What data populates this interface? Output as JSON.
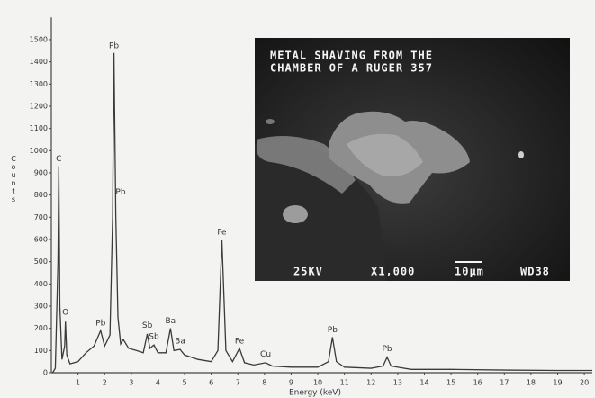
{
  "chart_data": {
    "type": "line",
    "color": "#3a3a3a",
    "y_label": "Counts",
    "x_label": "Energy (keV)",
    "xlim": [
      0,
      20.3
    ],
    "ylim": [
      0,
      1600
    ],
    "xticks": [
      1,
      2,
      3,
      4,
      5,
      6,
      7,
      8,
      9,
      10,
      11,
      12,
      13,
      14,
      15,
      16,
      17,
      18,
      19,
      20
    ],
    "yticks": [
      0,
      100,
      200,
      300,
      400,
      500,
      600,
      700,
      800,
      900,
      1000,
      1100,
      1200,
      1300,
      1400,
      1500
    ],
    "x": [
      0.05,
      0.15,
      0.25,
      0.28,
      0.32,
      0.4,
      0.5,
      0.53,
      0.58,
      0.7,
      1.0,
      1.3,
      1.6,
      1.85,
      2.0,
      2.2,
      2.3,
      2.35,
      2.42,
      2.5,
      2.6,
      2.7,
      2.9,
      3.2,
      3.45,
      3.6,
      3.7,
      3.85,
      4.0,
      4.3,
      4.47,
      4.6,
      4.83,
      5.0,
      5.5,
      6.0,
      6.25,
      6.4,
      6.55,
      6.8,
      7.06,
      7.25,
      7.6,
      8.04,
      8.3,
      9.0,
      10.0,
      10.4,
      10.55,
      10.7,
      11.0,
      12.0,
      12.45,
      12.6,
      12.75,
      13.5,
      15,
      17,
      19,
      20.3
    ],
    "values": [
      0,
      20,
      500,
      930,
      300,
      60,
      120,
      230,
      80,
      40,
      50,
      90,
      120,
      190,
      120,
      170,
      700,
      1440,
      700,
      250,
      130,
      150,
      110,
      100,
      90,
      175,
      110,
      125,
      90,
      90,
      200,
      100,
      105,
      80,
      60,
      50,
      100,
      600,
      100,
      50,
      110,
      45,
      35,
      45,
      30,
      25,
      25,
      50,
      160,
      50,
      25,
      20,
      30,
      70,
      30,
      15,
      15,
      12,
      10,
      10
    ],
    "annotations": [
      {
        "text": "C",
        "x": 0.28,
        "y": 930
      },
      {
        "text": "O",
        "x": 0.53,
        "y": 240
      },
      {
        "text": "Pb",
        "x": 1.85,
        "y": 190
      },
      {
        "text": "Pb",
        "x": 2.35,
        "y": 1440
      },
      {
        "text": "Pb",
        "x": 2.6,
        "y": 780
      },
      {
        "text": "Sb",
        "x": 3.6,
        "y": 180
      },
      {
        "text": "Sb",
        "x": 3.85,
        "y": 130
      },
      {
        "text": "Ba",
        "x": 4.47,
        "y": 200
      },
      {
        "text": "Ba",
        "x": 4.83,
        "y": 110
      },
      {
        "text": "Fe",
        "x": 6.4,
        "y": 600
      },
      {
        "text": "Fe",
        "x": 7.06,
        "y": 110
      },
      {
        "text": "Cu",
        "x": 8.04,
        "y": 50
      },
      {
        "text": "Pb",
        "x": 10.55,
        "y": 160
      },
      {
        "text": "Pb",
        "x": 12.6,
        "y": 75
      }
    ]
  },
  "inset": {
    "caption": [
      "METAL SHAVING FROM THE",
      "CHAMBER OF A RUGER 357"
    ],
    "footer": [
      "25KV",
      "X1,000",
      "10µm",
      "WD38"
    ]
  }
}
